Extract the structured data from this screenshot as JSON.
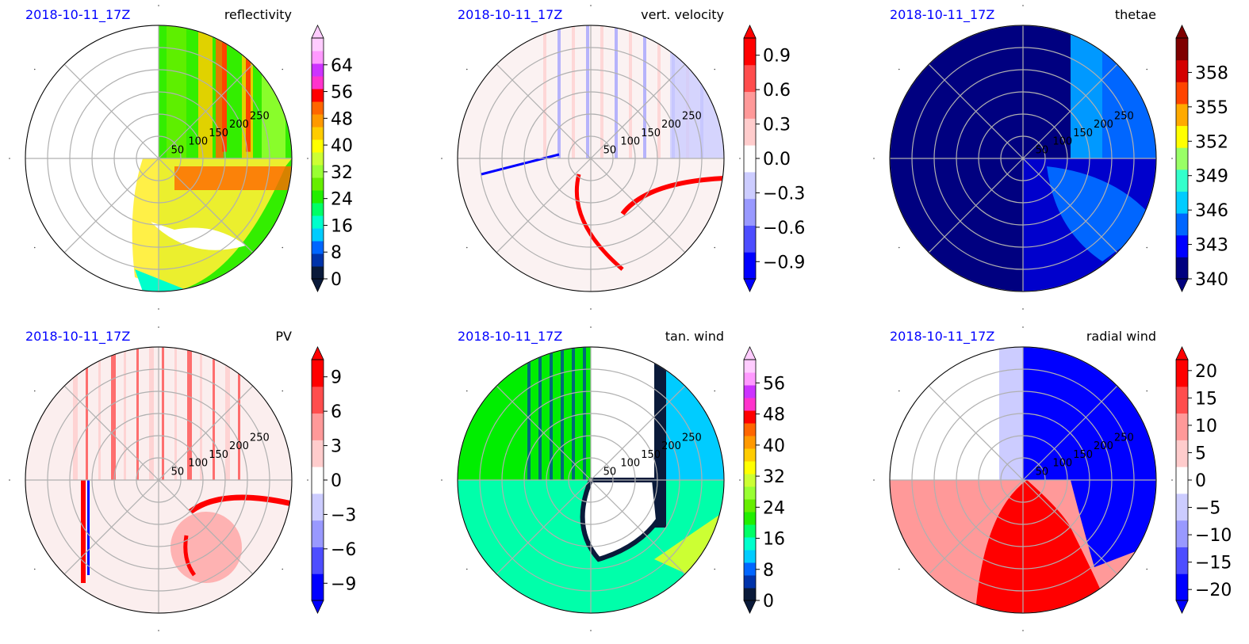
{
  "chart_data": [
    {
      "type": "heatmap",
      "projection": "polar",
      "date_label": "2018-10-11_17Z",
      "field_label": "reflectivity",
      "radial_ticks": [
        "50",
        "100",
        "150",
        "200",
        "250"
      ],
      "colorbar": {
        "ticks": [
          "0",
          "8",
          "16",
          "24",
          "32",
          "40",
          "48",
          "56",
          "64"
        ],
        "range": [
          0,
          72
        ],
        "extend": "both",
        "stops": [
          "#0a1a3a",
          "#0033aa",
          "#0066ff",
          "#00ccff",
          "#00ffcc",
          "#00ff66",
          "#22ee00",
          "#66ee00",
          "#99ff33",
          "#ccff33",
          "#ffff00",
          "#ffcc00",
          "#ff9900",
          "#ff6600",
          "#ff0000",
          "#ff33cc",
          "#cc33ff",
          "#ff99ff",
          "#ffccff"
        ]
      },
      "background": "#ffffff"
    },
    {
      "type": "heatmap",
      "projection": "polar",
      "date_label": "2018-10-11_17Z",
      "field_label": "vert. velocity",
      "radial_ticks": [
        "50",
        "100",
        "150",
        "200",
        "250"
      ],
      "colorbar": {
        "ticks": [
          "−0.9",
          "−0.6",
          "−0.3",
          "0.0",
          "0.3",
          "0.6",
          "0.9"
        ],
        "range": [
          -1.05,
          1.05
        ],
        "extend": "both",
        "stops": [
          "#0000ff",
          "#4d4dff",
          "#9999ff",
          "#ccccff",
          "#ffffff",
          "#ffcccc",
          "#ff9999",
          "#ff4d4d",
          "#ff0000"
        ]
      },
      "background": "#fbf2f2"
    },
    {
      "type": "heatmap",
      "projection": "polar",
      "date_label": "2018-10-11_17Z",
      "field_label": "thetae",
      "radial_ticks": [
        "50",
        "100",
        "150",
        "200",
        "250"
      ],
      "colorbar": {
        "ticks": [
          "340",
          "343",
          "346",
          "349",
          "352",
          "355",
          "358"
        ],
        "range": [
          340,
          361
        ],
        "extend": "both",
        "stops": [
          "#00007f",
          "#0000ff",
          "#0066ff",
          "#00ccff",
          "#33ffcc",
          "#99ff66",
          "#ffff00",
          "#ffaa00",
          "#ff4400",
          "#d40000",
          "#7f0000"
        ]
      },
      "background": "#000080"
    },
    {
      "type": "heatmap",
      "projection": "polar",
      "date_label": "2018-10-11_17Z",
      "field_label": "PV",
      "radial_ticks": [
        "50",
        "100",
        "150",
        "200",
        "250"
      ],
      "colorbar": {
        "ticks": [
          "−9",
          "−6",
          "−3",
          "0",
          "3",
          "6",
          "9"
        ],
        "range": [
          -10.5,
          10.5
        ],
        "extend": "both",
        "stops": [
          "#0000ff",
          "#4d4dff",
          "#9999ff",
          "#ccccff",
          "#ffffff",
          "#ffcccc",
          "#ff9999",
          "#ff4d4d",
          "#ff0000"
        ]
      },
      "background": "#fbeeee"
    },
    {
      "type": "heatmap",
      "projection": "polar",
      "date_label": "2018-10-11_17Z",
      "field_label": "tan. wind",
      "radial_ticks": [
        "50",
        "100",
        "150",
        "200",
        "250"
      ],
      "colorbar": {
        "ticks": [
          "0",
          "8",
          "16",
          "24",
          "32",
          "40",
          "48",
          "56"
        ],
        "range": [
          0,
          62
        ],
        "extend": "both",
        "stops": [
          "#0a1a3a",
          "#0033aa",
          "#0066ff",
          "#00ccff",
          "#00ffcc",
          "#00ff66",
          "#22ee00",
          "#66ee00",
          "#99ff33",
          "#ccff33",
          "#ffff00",
          "#ffcc00",
          "#ff9900",
          "#ff6600",
          "#ff0000",
          "#ff33cc",
          "#cc33ff",
          "#ff99ff",
          "#ffccff"
        ]
      },
      "background": "#00ee00"
    },
    {
      "type": "heatmap",
      "projection": "polar",
      "date_label": "2018-10-11_17Z",
      "field_label": "radial wind",
      "radial_ticks": [
        "50",
        "100",
        "150",
        "200",
        "250"
      ],
      "colorbar": {
        "ticks": [
          "−20",
          "−15",
          "−10",
          "−5",
          "0",
          "5",
          "10",
          "15",
          "20"
        ],
        "range": [
          -22,
          22
        ],
        "extend": "both",
        "stops": [
          "#0000ff",
          "#4d4dff",
          "#9999ff",
          "#ccccff",
          "#ffffff",
          "#ffcccc",
          "#ff9999",
          "#ff4d4d",
          "#ff0000"
        ]
      },
      "background": "#ffffff"
    }
  ]
}
